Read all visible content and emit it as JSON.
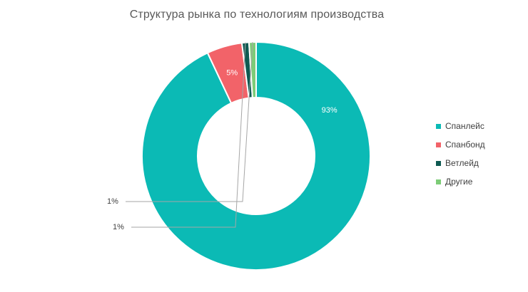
{
  "chart_data": {
    "type": "pie",
    "title": "Структура рынка  по технологиям производства",
    "hole": true,
    "legend_position": "right",
    "categories": [
      "Спанлейс",
      "Спанбонд",
      "Ветлейд",
      "Другие"
    ],
    "values": [
      93,
      5,
      1,
      1
    ],
    "labels": [
      "93%",
      "5%",
      "1%",
      "1%"
    ],
    "colors": [
      "#0bbab5",
      "#f26369",
      "#0e5a52",
      "#7dcc77"
    ]
  }
}
